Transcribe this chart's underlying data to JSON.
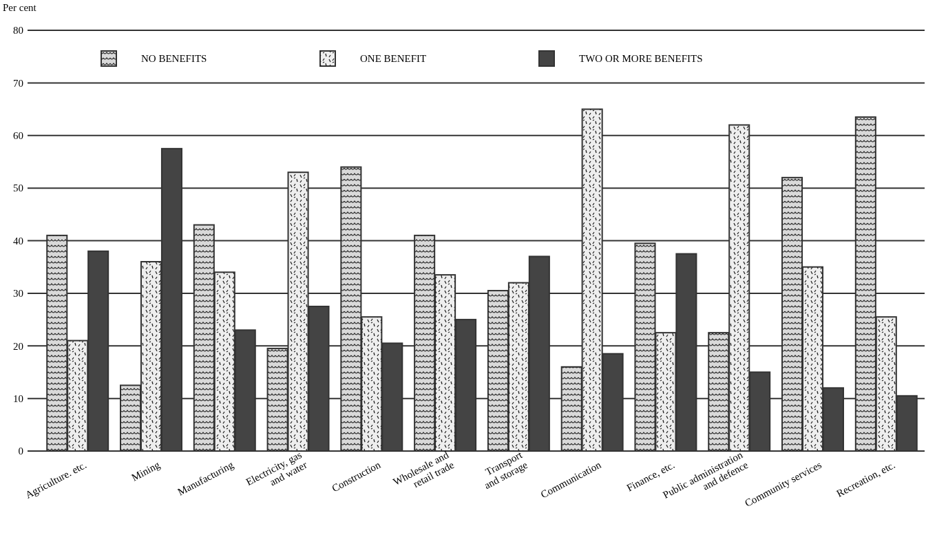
{
  "chart_data": {
    "type": "bar",
    "ylabel": "Per cent",
    "categories": [
      "Agriculture. etc.",
      "Mining",
      "Manufacturing",
      "Electricity, gas\nand water",
      "Construction",
      "Wholesale and\nretail trade",
      "Transport\nand storage",
      "Communication",
      "Finance, etc.",
      "Public administration\nand defence",
      "Community services",
      "Recreation, etc."
    ],
    "series": [
      {
        "name": "NO BENEFITS",
        "color": "#d9d9d9",
        "values": [
          41,
          12.5,
          43,
          19.5,
          54,
          41,
          30.5,
          16,
          39.5,
          22.5,
          52,
          63.5
        ]
      },
      {
        "name": "ONE BENEFIT",
        "color": "#eeeeee",
        "values": [
          21,
          36,
          34,
          53,
          25.5,
          33.5,
          32,
          65,
          22.5,
          62,
          35,
          25.5
        ]
      },
      {
        "name": "TWO OR MORE BENEFITS",
        "color": "#444444",
        "values": [
          38,
          57.5,
          23,
          27.5,
          20.5,
          25,
          37,
          18.5,
          37.5,
          15,
          12,
          10.5
        ]
      }
    ],
    "ylim": [
      0,
      80
    ],
    "yticks": [
      0,
      10,
      20,
      30,
      40,
      50,
      60,
      70,
      80
    ],
    "grid": "y",
    "legend": "top"
  }
}
